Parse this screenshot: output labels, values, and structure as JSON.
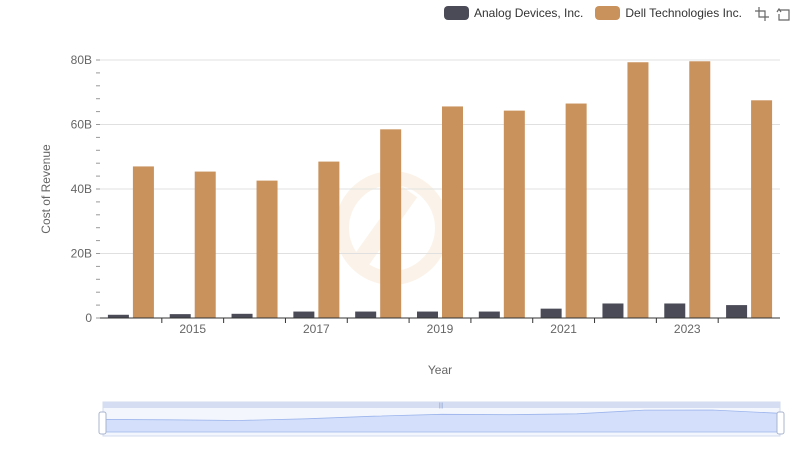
{
  "legend": {
    "series_a": "Analog Devices, Inc.",
    "series_b": "Dell Technologies Inc."
  },
  "toolbox": {
    "zoom_icon": "zoom-crosshair-icon",
    "restore_icon": "restore-arrow-icon"
  },
  "chart_data": {
    "type": "bar",
    "title": "",
    "xlabel": "Year",
    "ylabel": "Cost of Revenue",
    "categories": [
      "2014",
      "2015",
      "2016",
      "2017",
      "2018",
      "2019",
      "2020",
      "2021",
      "2022",
      "2023",
      "2024"
    ],
    "x_tick_labels": [
      "2015",
      "2017",
      "2019",
      "2021",
      "2023"
    ],
    "y_tick_labels": [
      "0",
      "20B",
      "40B",
      "60B",
      "80B"
    ],
    "ylim": [
      0,
      80
    ],
    "y_unit": "B",
    "grid": true,
    "legend_position": "top-right",
    "series": [
      {
        "name": "Analog Devices, Inc.",
        "color": "#4a4b57",
        "values": [
          1.0,
          1.2,
          1.3,
          2.0,
          2.0,
          2.0,
          2.0,
          2.9,
          4.5,
          4.5,
          4.0
        ]
      },
      {
        "name": "Dell Technologies Inc.",
        "color": "#c9915c",
        "values": [
          47.0,
          45.4,
          42.6,
          48.5,
          58.5,
          65.6,
          64.3,
          66.5,
          79.3,
          79.6,
          67.5
        ]
      }
    ]
  },
  "datazoom": {
    "start_percent": 0,
    "end_percent": 100,
    "handle_label": "|||"
  }
}
